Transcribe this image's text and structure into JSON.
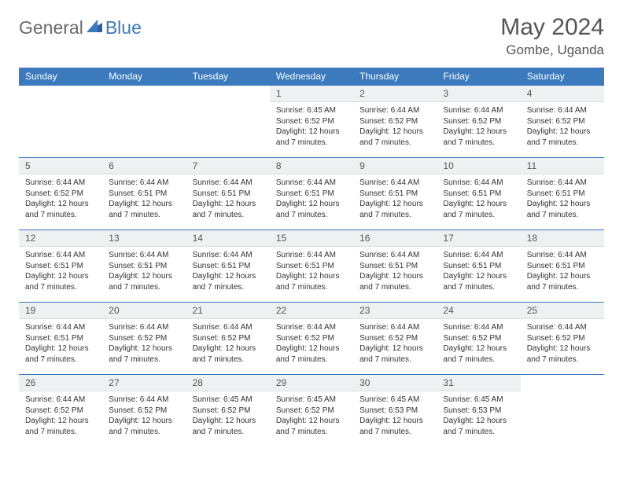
{
  "logo": {
    "general": "General",
    "blue": "Blue"
  },
  "title": {
    "month": "May 2024",
    "location": "Gombe, Uganda"
  },
  "colors": {
    "header_bg": "#3a7abd",
    "header_text": "#ffffff",
    "daynum_bg": "#eef0f2",
    "rule": "#3a7abd"
  },
  "weekdays": [
    "Sunday",
    "Monday",
    "Tuesday",
    "Wednesday",
    "Thursday",
    "Friday",
    "Saturday"
  ],
  "weeks": [
    [
      {
        "num": "",
        "sunrise": "",
        "sunset": "",
        "daylight": "",
        "blank": true
      },
      {
        "num": "",
        "sunrise": "",
        "sunset": "",
        "daylight": "",
        "blank": true
      },
      {
        "num": "",
        "sunrise": "",
        "sunset": "",
        "daylight": "",
        "blank": true
      },
      {
        "num": "1",
        "sunrise": "Sunrise: 6:45 AM",
        "sunset": "Sunset: 6:52 PM",
        "daylight": "Daylight: 12 hours and 7 minutes."
      },
      {
        "num": "2",
        "sunrise": "Sunrise: 6:44 AM",
        "sunset": "Sunset: 6:52 PM",
        "daylight": "Daylight: 12 hours and 7 minutes."
      },
      {
        "num": "3",
        "sunrise": "Sunrise: 6:44 AM",
        "sunset": "Sunset: 6:52 PM",
        "daylight": "Daylight: 12 hours and 7 minutes."
      },
      {
        "num": "4",
        "sunrise": "Sunrise: 6:44 AM",
        "sunset": "Sunset: 6:52 PM",
        "daylight": "Daylight: 12 hours and 7 minutes."
      }
    ],
    [
      {
        "num": "5",
        "sunrise": "Sunrise: 6:44 AM",
        "sunset": "Sunset: 6:52 PM",
        "daylight": "Daylight: 12 hours and 7 minutes."
      },
      {
        "num": "6",
        "sunrise": "Sunrise: 6:44 AM",
        "sunset": "Sunset: 6:51 PM",
        "daylight": "Daylight: 12 hours and 7 minutes."
      },
      {
        "num": "7",
        "sunrise": "Sunrise: 6:44 AM",
        "sunset": "Sunset: 6:51 PM",
        "daylight": "Daylight: 12 hours and 7 minutes."
      },
      {
        "num": "8",
        "sunrise": "Sunrise: 6:44 AM",
        "sunset": "Sunset: 6:51 PM",
        "daylight": "Daylight: 12 hours and 7 minutes."
      },
      {
        "num": "9",
        "sunrise": "Sunrise: 6:44 AM",
        "sunset": "Sunset: 6:51 PM",
        "daylight": "Daylight: 12 hours and 7 minutes."
      },
      {
        "num": "10",
        "sunrise": "Sunrise: 6:44 AM",
        "sunset": "Sunset: 6:51 PM",
        "daylight": "Daylight: 12 hours and 7 minutes."
      },
      {
        "num": "11",
        "sunrise": "Sunrise: 6:44 AM",
        "sunset": "Sunset: 6:51 PM",
        "daylight": "Daylight: 12 hours and 7 minutes."
      }
    ],
    [
      {
        "num": "12",
        "sunrise": "Sunrise: 6:44 AM",
        "sunset": "Sunset: 6:51 PM",
        "daylight": "Daylight: 12 hours and 7 minutes."
      },
      {
        "num": "13",
        "sunrise": "Sunrise: 6:44 AM",
        "sunset": "Sunset: 6:51 PM",
        "daylight": "Daylight: 12 hours and 7 minutes."
      },
      {
        "num": "14",
        "sunrise": "Sunrise: 6:44 AM",
        "sunset": "Sunset: 6:51 PM",
        "daylight": "Daylight: 12 hours and 7 minutes."
      },
      {
        "num": "15",
        "sunrise": "Sunrise: 6:44 AM",
        "sunset": "Sunset: 6:51 PM",
        "daylight": "Daylight: 12 hours and 7 minutes."
      },
      {
        "num": "16",
        "sunrise": "Sunrise: 6:44 AM",
        "sunset": "Sunset: 6:51 PM",
        "daylight": "Daylight: 12 hours and 7 minutes."
      },
      {
        "num": "17",
        "sunrise": "Sunrise: 6:44 AM",
        "sunset": "Sunset: 6:51 PM",
        "daylight": "Daylight: 12 hours and 7 minutes."
      },
      {
        "num": "18",
        "sunrise": "Sunrise: 6:44 AM",
        "sunset": "Sunset: 6:51 PM",
        "daylight": "Daylight: 12 hours and 7 minutes."
      }
    ],
    [
      {
        "num": "19",
        "sunrise": "Sunrise: 6:44 AM",
        "sunset": "Sunset: 6:51 PM",
        "daylight": "Daylight: 12 hours and 7 minutes."
      },
      {
        "num": "20",
        "sunrise": "Sunrise: 6:44 AM",
        "sunset": "Sunset: 6:52 PM",
        "daylight": "Daylight: 12 hours and 7 minutes."
      },
      {
        "num": "21",
        "sunrise": "Sunrise: 6:44 AM",
        "sunset": "Sunset: 6:52 PM",
        "daylight": "Daylight: 12 hours and 7 minutes."
      },
      {
        "num": "22",
        "sunrise": "Sunrise: 6:44 AM",
        "sunset": "Sunset: 6:52 PM",
        "daylight": "Daylight: 12 hours and 7 minutes."
      },
      {
        "num": "23",
        "sunrise": "Sunrise: 6:44 AM",
        "sunset": "Sunset: 6:52 PM",
        "daylight": "Daylight: 12 hours and 7 minutes."
      },
      {
        "num": "24",
        "sunrise": "Sunrise: 6:44 AM",
        "sunset": "Sunset: 6:52 PM",
        "daylight": "Daylight: 12 hours and 7 minutes."
      },
      {
        "num": "25",
        "sunrise": "Sunrise: 6:44 AM",
        "sunset": "Sunset: 6:52 PM",
        "daylight": "Daylight: 12 hours and 7 minutes."
      }
    ],
    [
      {
        "num": "26",
        "sunrise": "Sunrise: 6:44 AM",
        "sunset": "Sunset: 6:52 PM",
        "daylight": "Daylight: 12 hours and 7 minutes."
      },
      {
        "num": "27",
        "sunrise": "Sunrise: 6:44 AM",
        "sunset": "Sunset: 6:52 PM",
        "daylight": "Daylight: 12 hours and 7 minutes."
      },
      {
        "num": "28",
        "sunrise": "Sunrise: 6:45 AM",
        "sunset": "Sunset: 6:52 PM",
        "daylight": "Daylight: 12 hours and 7 minutes."
      },
      {
        "num": "29",
        "sunrise": "Sunrise: 6:45 AM",
        "sunset": "Sunset: 6:52 PM",
        "daylight": "Daylight: 12 hours and 7 minutes."
      },
      {
        "num": "30",
        "sunrise": "Sunrise: 6:45 AM",
        "sunset": "Sunset: 6:53 PM",
        "daylight": "Daylight: 12 hours and 7 minutes."
      },
      {
        "num": "31",
        "sunrise": "Sunrise: 6:45 AM",
        "sunset": "Sunset: 6:53 PM",
        "daylight": "Daylight: 12 hours and 7 minutes."
      },
      {
        "num": "",
        "sunrise": "",
        "sunset": "",
        "daylight": "",
        "blank": true
      }
    ]
  ]
}
